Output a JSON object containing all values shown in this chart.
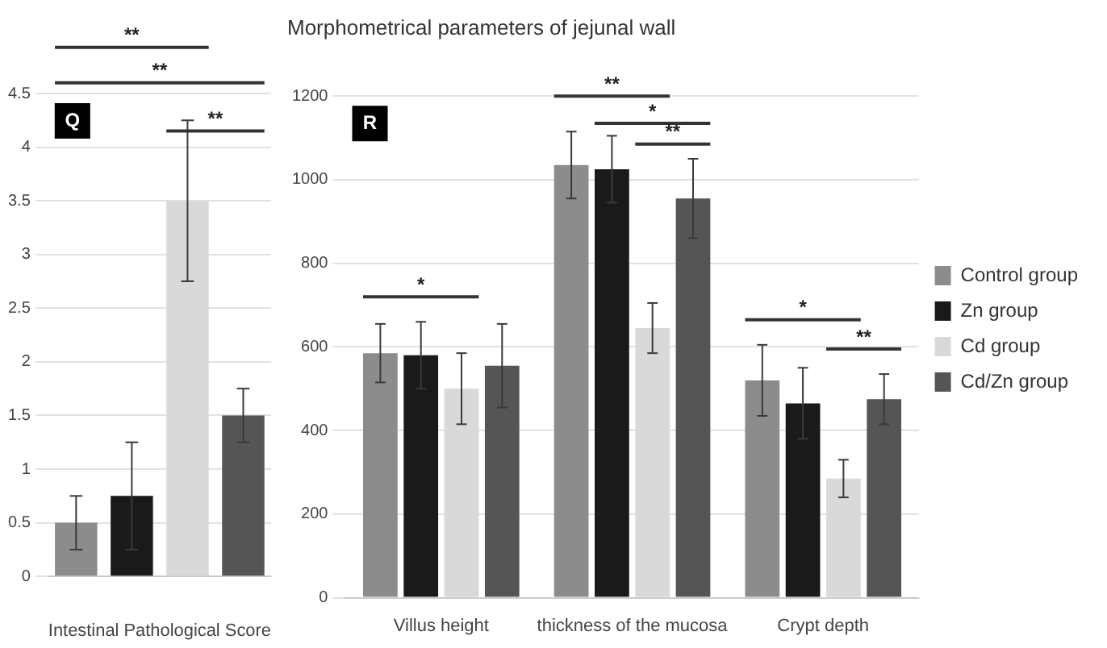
{
  "chart_data": [
    {
      "type": "bar",
      "xlabel": "Intestinal Pathological Score",
      "categories": [
        null,
        null,
        null,
        null
      ],
      "ylim": [
        0,
        4.5
      ],
      "yticks": [
        0,
        0.5,
        1,
        1.5,
        2,
        2.5,
        3,
        3.5,
        4,
        4.5
      ],
      "grid": "y",
      "legend": false,
      "series": [
        {
          "colors": [
            "#8c8c8c",
            "#1a1a1a",
            "#d9d9d9",
            "#555555"
          ],
          "values": [
            0.5,
            0.75,
            3.5,
            1.5
          ],
          "errors": [
            0.25,
            0.5,
            0.75,
            0.25
          ]
        }
      ],
      "annotations": [
        "Q",
        "**",
        "**",
        "**"
      ]
    },
    {
      "type": "bar",
      "title": "Morphometrical parameters of jejunal wall",
      "categories": [
        "Villus height",
        "thickness of the mucosa",
        "Crypt depth"
      ],
      "ylim": [
        0,
        1200
      ],
      "yticks": [
        0,
        200,
        400,
        600,
        800,
        1000,
        1200
      ],
      "grid": "y",
      "legend": "right",
      "series": [
        {
          "name": "Control group",
          "color": "#8c8c8c",
          "values": [
            585,
            1035,
            520
          ],
          "errors": [
            70,
            80,
            85
          ]
        },
        {
          "name": "Zn group",
          "color": "#1a1a1a",
          "values": [
            580,
            1025,
            465
          ],
          "errors": [
            80,
            80,
            85
          ]
        },
        {
          "name": "Cd group",
          "color": "#d9d9d9",
          "values": [
            500,
            645,
            285
          ],
          "errors": [
            85,
            60,
            45
          ]
        },
        {
          "name": "Cd/Zn group",
          "color": "#555555",
          "values": [
            555,
            955,
            475
          ],
          "errors": [
            100,
            95,
            60
          ]
        }
      ],
      "annotations": [
        "R",
        "*",
        "**",
        "*",
        "**",
        "*",
        "**"
      ]
    }
  ]
}
